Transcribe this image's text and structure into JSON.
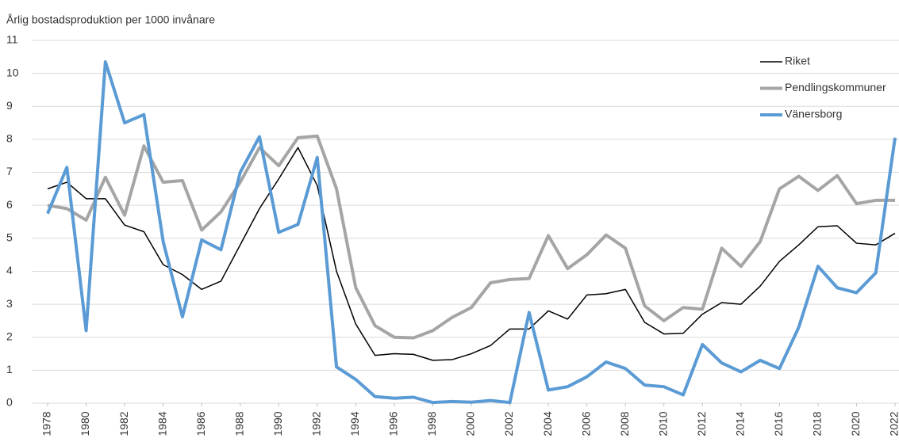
{
  "chart_data": {
    "type": "line",
    "title": "Årlig bostadsproduktion per 1000 invånare",
    "x": [
      1978,
      1979,
      1980,
      1981,
      1982,
      1983,
      1984,
      1985,
      1986,
      1987,
      1988,
      1989,
      1990,
      1991,
      1992,
      1993,
      1994,
      1995,
      1996,
      1997,
      1998,
      1999,
      2000,
      2001,
      2002,
      2003,
      2004,
      2005,
      2006,
      2007,
      2008,
      2009,
      2010,
      2011,
      2012,
      2013,
      2014,
      2015,
      2016,
      2017,
      2018,
      2019,
      2020,
      2021,
      2022
    ],
    "xlim": [
      1978,
      2022
    ],
    "xticks": [
      1978,
      1980,
      1982,
      1984,
      1986,
      1988,
      1990,
      1992,
      1994,
      1996,
      1998,
      2000,
      2002,
      2004,
      2006,
      2008,
      2010,
      2012,
      2014,
      2016,
      2018,
      2020,
      2022
    ],
    "ylim": [
      0,
      11
    ],
    "yticks": [
      0,
      1,
      2,
      3,
      4,
      5,
      6,
      7,
      8,
      9,
      10,
      11
    ],
    "grid": true,
    "legend": "top-right",
    "series": [
      {
        "name": "Riket",
        "color": "#000000",
        "values": [
          6.5,
          6.7,
          6.2,
          6.2,
          5.4,
          5.2,
          4.2,
          3.9,
          3.45,
          3.7,
          4.8,
          5.9,
          6.8,
          7.75,
          6.6,
          4.0,
          2.4,
          1.45,
          1.5,
          1.48,
          1.3,
          1.32,
          1.5,
          1.75,
          2.25,
          2.25,
          2.8,
          2.55,
          3.28,
          3.32,
          3.45,
          2.45,
          2.1,
          2.12,
          2.7,
          3.05,
          3.0,
          3.55,
          4.3,
          4.8,
          5.35,
          5.38,
          4.85,
          4.8,
          5.15
        ]
      },
      {
        "name": "Pendlingskommuner",
        "color": "#a5a5a5",
        "values": [
          6.0,
          5.9,
          5.55,
          6.85,
          5.7,
          7.8,
          6.7,
          6.75,
          5.25,
          5.8,
          6.7,
          7.75,
          7.2,
          8.05,
          8.1,
          6.5,
          3.5,
          2.35,
          2.0,
          1.98,
          2.2,
          2.6,
          2.9,
          3.65,
          3.75,
          3.78,
          5.08,
          4.08,
          4.5,
          5.1,
          4.7,
          2.95,
          2.5,
          2.9,
          2.85,
          4.7,
          4.15,
          4.9,
          6.5,
          6.88,
          6.45,
          6.9,
          6.05,
          6.15,
          6.15
        ]
      },
      {
        "name": "Vänersborg",
        "color": "#5b9bd5",
        "values": [
          5.75,
          7.15,
          2.2,
          10.35,
          8.5,
          8.75,
          4.9,
          2.62,
          4.95,
          4.65,
          7.0,
          8.08,
          5.18,
          5.42,
          7.45,
          1.1,
          0.72,
          0.2,
          0.15,
          0.18,
          0.02,
          0.05,
          0.03,
          0.08,
          0.02,
          2.75,
          0.4,
          0.5,
          0.8,
          1.25,
          1.05,
          0.55,
          0.5,
          0.25,
          1.78,
          1.22,
          0.95,
          1.3,
          1.05,
          2.3,
          4.15,
          3.5,
          3.35,
          3.95,
          8.05
        ]
      }
    ]
  }
}
